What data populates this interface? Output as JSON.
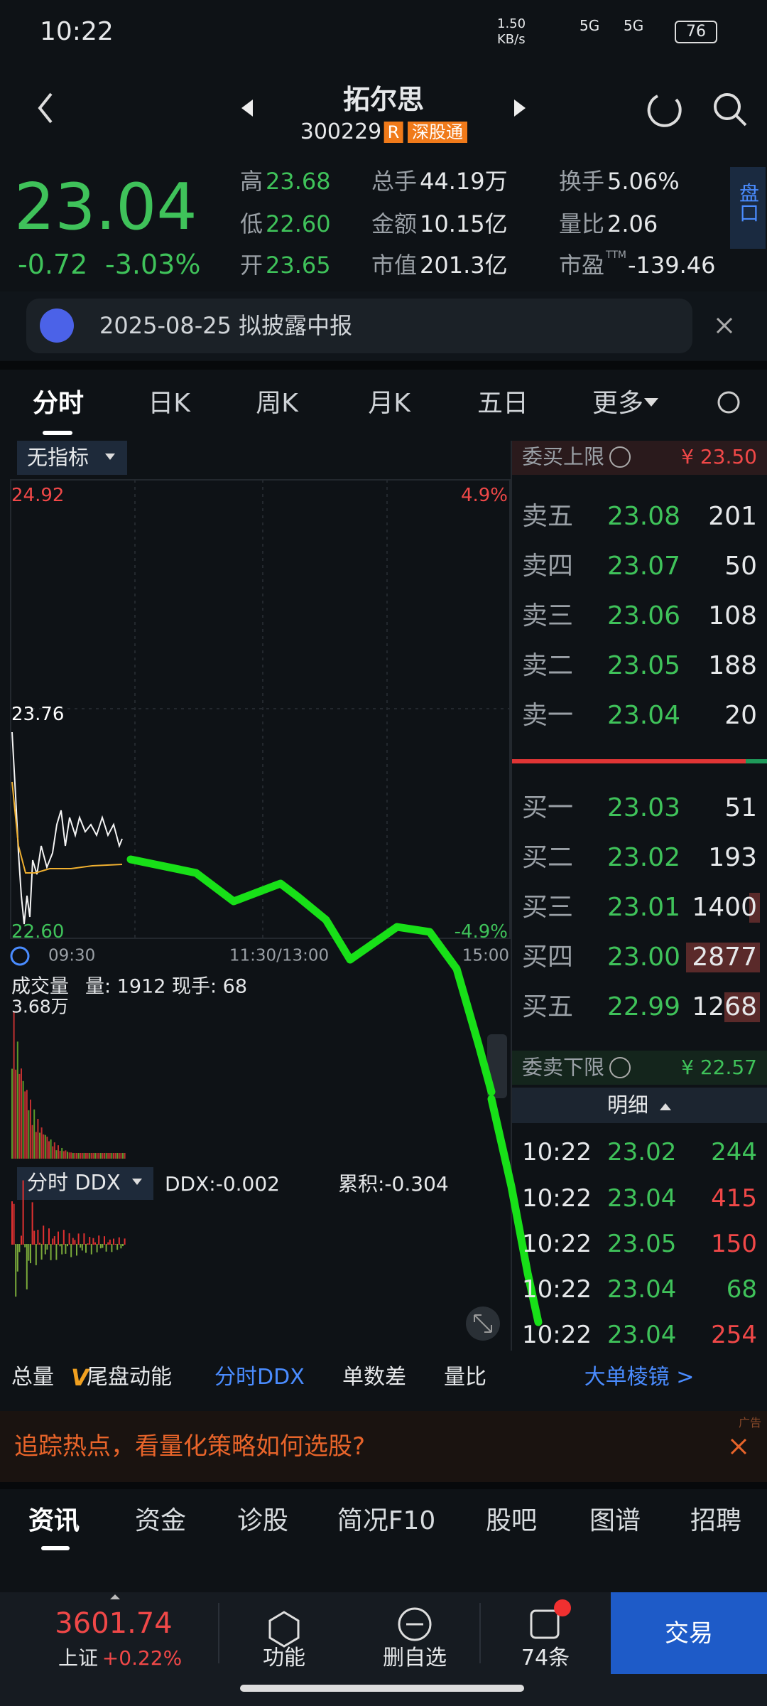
{
  "status_bar": {
    "time": "10:22",
    "speed": "1.50",
    "speed_unit": "KB/s",
    "network_1": "5G",
    "network_2": "5G",
    "battery": "76"
  },
  "header": {
    "title": "拓尔思",
    "code": "300229",
    "badge_r": "R",
    "badge_connect": "深股通"
  },
  "quote": {
    "price": "23.04",
    "change": "-0.72",
    "change_pct": "-3.03%",
    "stats": [
      {
        "label": "高",
        "value": "23.68",
        "color": "#3fc25a"
      },
      {
        "label": "总手",
        "value": "44.19万",
        "color": "#e6e8ea"
      },
      {
        "label": "换手",
        "value": "5.06%",
        "color": "#e6e8ea"
      },
      {
        "label": "低",
        "value": "22.60",
        "color": "#3fc25a"
      },
      {
        "label": "金额",
        "value": "10.15亿",
        "color": "#e6e8ea"
      },
      {
        "label": "量比",
        "value": "2.06",
        "color": "#e6e8ea"
      },
      {
        "label": "开",
        "value": "23.65",
        "color": "#3fc25a"
      },
      {
        "label": "市值",
        "value": "201.3亿",
        "color": "#e6e8ea"
      },
      {
        "label": "市盈",
        "sup": "TTM",
        "value": "-139.46",
        "color": "#e6e8ea"
      }
    ],
    "side_tab": "盘口"
  },
  "notice": {
    "text": "2025-08-25 拟披露中报"
  },
  "tabs": [
    "分时",
    "日K",
    "周K",
    "月K",
    "五日",
    "更多"
  ],
  "chart": {
    "indicator": "无指标",
    "price_high": "24.92",
    "pct_high": "4.9%",
    "price_mid": "23.76",
    "price_low": "22.60",
    "pct_low": "-4.9%",
    "times": [
      "09:30",
      "11:30/13:00",
      "15:00"
    ],
    "volume_title": "成交量",
    "volume_info": "量: 1912 现手: 68",
    "volume_max": "3.68万",
    "ddx_selector": "分时 DDX",
    "ddx": "DDX:-0.002",
    "ddx_cum": "累积:-0.304"
  },
  "order_book": {
    "upper_label": "委买上限",
    "upper_price": "¥ 23.50",
    "asks": [
      {
        "level": "卖五",
        "price": "23.08",
        "volume": "201"
      },
      {
        "level": "卖四",
        "price": "23.07",
        "volume": "50"
      },
      {
        "level": "卖三",
        "price": "23.06",
        "volume": "108"
      },
      {
        "level": "卖二",
        "price": "23.05",
        "volume": "188"
      },
      {
        "level": "卖一",
        "price": "23.04",
        "volume": "20"
      }
    ],
    "bids": [
      {
        "level": "买一",
        "price": "23.03",
        "volume": "51"
      },
      {
        "level": "买二",
        "price": "23.02",
        "volume": "193"
      },
      {
        "level": "买三",
        "price": "23.01",
        "volume": "1400"
      },
      {
        "level": "买四",
        "price": "23.00",
        "volume": "2877"
      },
      {
        "level": "买五",
        "price": "22.99",
        "volume": "1268"
      }
    ],
    "lower_label": "委卖下限",
    "lower_price": "¥ 22.57",
    "detail_title": "明细",
    "trades": [
      {
        "time": "10:22",
        "price": "23.02",
        "volume": "244",
        "color": "#3fc25a"
      },
      {
        "time": "10:22",
        "price": "23.04",
        "volume": "415",
        "color": "#f04848"
      },
      {
        "time": "10:22",
        "price": "23.05",
        "volume": "150",
        "color": "#f04848"
      },
      {
        "time": "10:22",
        "price": "23.04",
        "volume": "68",
        "color": "#3fc25a"
      },
      {
        "time": "10:22",
        "price": "23.04",
        "volume": "254",
        "color": "#f04848"
      }
    ]
  },
  "indicator_tabs": {
    "total": "总量",
    "v_mark": "V",
    "tail": "尾盘动能",
    "ddx": "分时DDX",
    "count_diff": "单数差",
    "ratio": "量比",
    "big_order": "大单棱镜 >"
  },
  "ad": {
    "text": "追踪热点，看量化策略如何选股?",
    "tag": "广告"
  },
  "info_tabs": [
    "资讯",
    "资金",
    "诊股",
    "简况F10",
    "股吧",
    "图谱",
    "招聘"
  ],
  "bottom_nav": {
    "index_value": "3601.74",
    "index_name": "上证",
    "index_change": "+0.22%",
    "items": [
      "功能",
      "删自选",
      "74条"
    ],
    "trade": "交易"
  }
}
